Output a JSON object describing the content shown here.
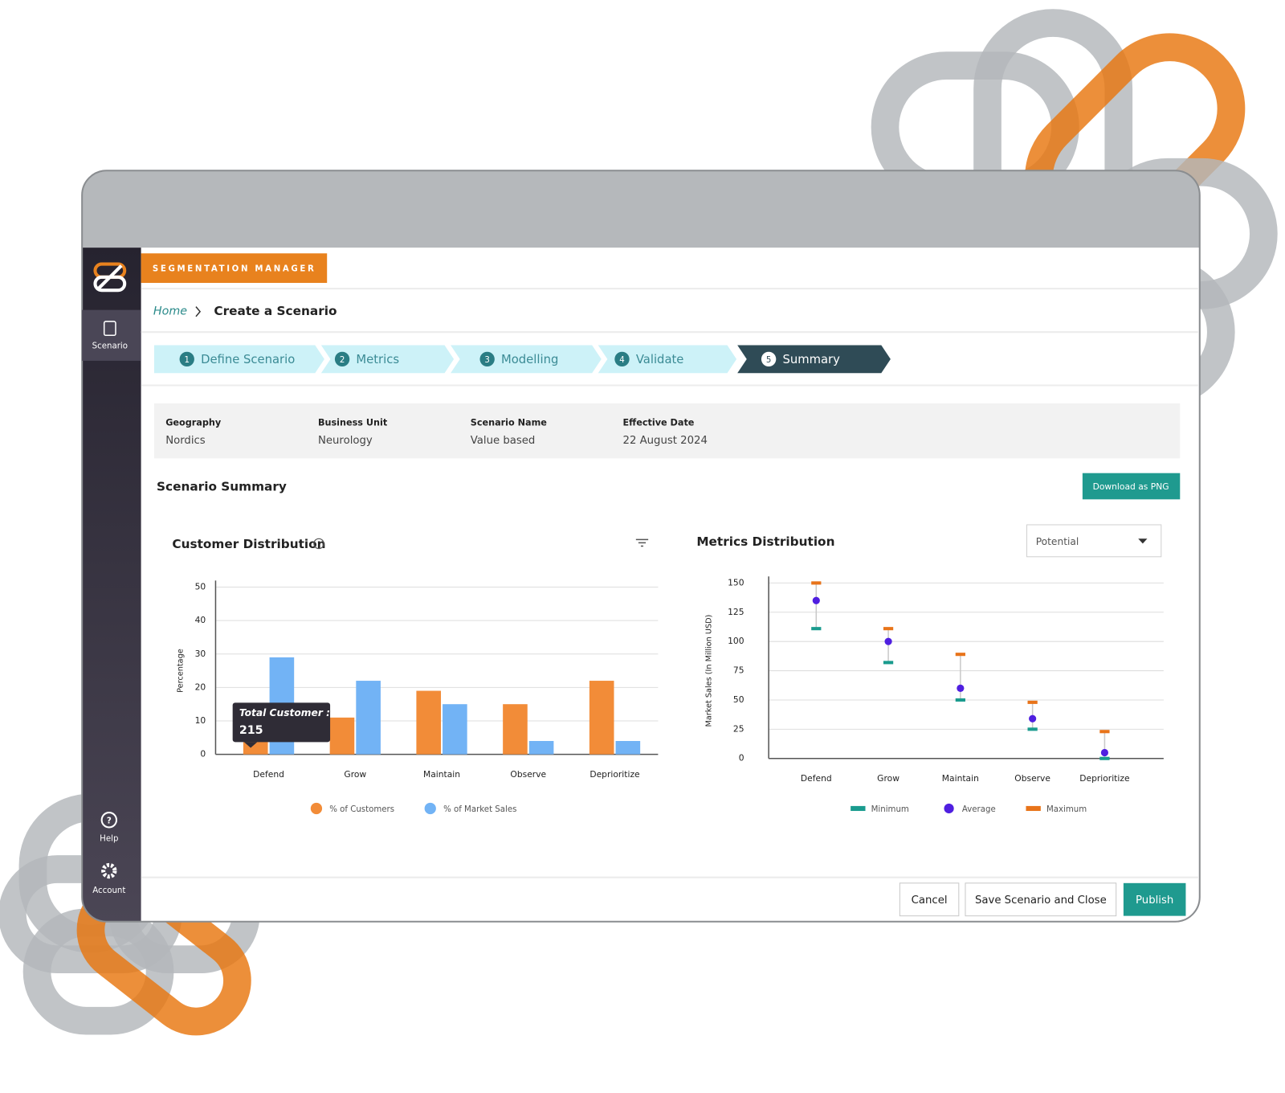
{
  "app": {
    "brand": "SEGMENTATION MANAGER",
    "nav_scenario": "Scenario",
    "nav_help": "Help",
    "nav_account": "Account"
  },
  "breadcrumb": {
    "home": "Home",
    "current": "Create a Scenario"
  },
  "steps": [
    {
      "number": 1,
      "label": "Define Scenario"
    },
    {
      "number": 2,
      "label": "Metrics"
    },
    {
      "number": 3,
      "label": "Modelling"
    },
    {
      "number": 4,
      "label": "Validate"
    },
    {
      "number": 5,
      "label": "Summary"
    }
  ],
  "details": [
    {
      "label": "Geography",
      "value": "Nordics"
    },
    {
      "label": "Business Unit",
      "value": "Neurology"
    },
    {
      "label": "Scenario Name",
      "value": "Value based"
    },
    {
      "label": "Effective Date",
      "value": "22 August 2024"
    }
  ],
  "section_title": "Scenario Summary",
  "download_button": "Download as PNG",
  "chart_data": [
    {
      "type": "bar",
      "title": "Customer Distribution",
      "y_label": "Percentage",
      "categories": [
        "Defend",
        "Grow",
        "Maintain",
        "Observe",
        "Deprioritize"
      ],
      "series": [
        {
          "name": "% of Customers",
          "color": "#f28c38",
          "values": [
            5,
            11,
            19,
            15,
            22
          ]
        },
        {
          "name": "% of Market Sales",
          "color": "#72b3f5",
          "values": [
            29,
            22,
            15,
            4,
            4
          ]
        }
      ],
      "ylim": [
        0,
        50
      ],
      "yticks": [
        0,
        10,
        20,
        30,
        40,
        50
      ],
      "grid": true,
      "tooltip": {
        "title": "Total Customer :",
        "value": 215
      }
    },
    {
      "type": "range",
      "title": "Metrics Distribution",
      "dropdown": "Potential",
      "y_label": "Market Sales (In Million USD)",
      "categories": [
        "Defend",
        "Grow",
        "Maintain",
        "Observe",
        "Deprioritize"
      ],
      "series": [
        {
          "name": "Minimum",
          "color": "#1a9b8e",
          "marker": "dash",
          "values": [
            111,
            82,
            50,
            25,
            0
          ]
        },
        {
          "name": "Average",
          "color": "#4f1fe0",
          "marker": "dot",
          "values": [
            135,
            100,
            60,
            34,
            5
          ]
        },
        {
          "name": "Maximum",
          "color": "#e8741a",
          "marker": "dash",
          "values": [
            150,
            111,
            89,
            48,
            23
          ]
        }
      ],
      "ylim": [
        0,
        150
      ],
      "yticks": [
        0,
        25,
        50,
        75,
        100,
        125,
        150
      ],
      "grid": true
    }
  ],
  "footer_buttons": [
    "Cancel",
    "Save Scenario and Close",
    "Publish"
  ]
}
